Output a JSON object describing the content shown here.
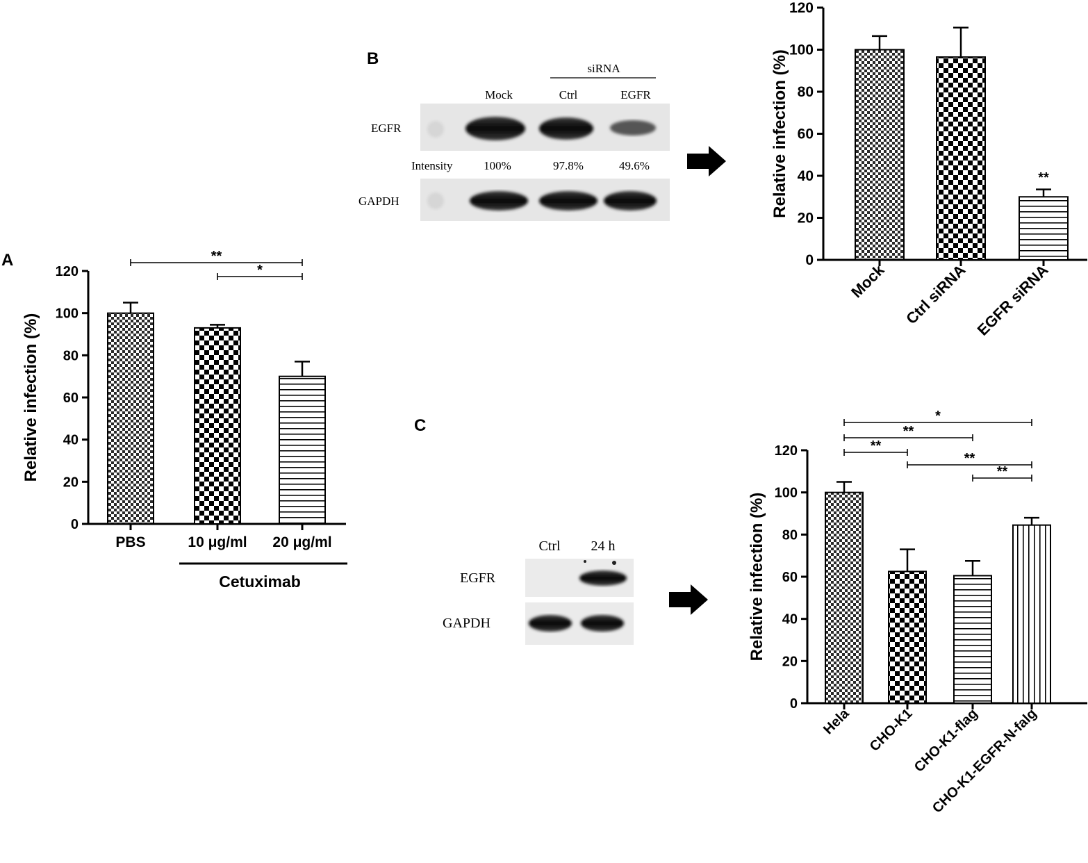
{
  "panels": {
    "A": {
      "letter": "A"
    },
    "B": {
      "letter": "B"
    },
    "C": {
      "letter": "C"
    }
  },
  "blot_B": {
    "group_label": "siRNA",
    "lanes": [
      "Mock",
      "Ctrl",
      "EGFR"
    ],
    "row1": "EGFR",
    "row2": "GAPDH",
    "intensity_label": "Intensity",
    "intensities": [
      "100%",
      "97.8%",
      "49.6%"
    ]
  },
  "blot_C": {
    "lanes": [
      "Ctrl",
      "24 h"
    ],
    "row1": "EGFR",
    "row2": "GAPDH"
  },
  "chart_data": [
    {
      "id": "A",
      "type": "bar",
      "categories": [
        "PBS",
        "10 μg/ml",
        "20  μg/ml"
      ],
      "values": [
        100,
        93,
        70
      ],
      "errors": [
        5,
        1.5,
        7
      ],
      "group_label": "Cetuximab",
      "ylabel": "Relative infection (%)",
      "ylim": [
        0,
        120
      ],
      "yticks": [
        0,
        20,
        40,
        60,
        80,
        100,
        120
      ],
      "patterns": [
        "fine-check",
        "checker",
        "hlines"
      ],
      "significance": [
        {
          "from": 0,
          "to": 2,
          "label": "**"
        },
        {
          "from": 1,
          "to": 2,
          "label": "*"
        }
      ]
    },
    {
      "id": "B",
      "type": "bar",
      "categories": [
        "Mock",
        "Ctrl siRNA",
        "EGFR siRNA"
      ],
      "values": [
        100,
        96.5,
        30
      ],
      "errors": [
        6.5,
        14,
        3.5
      ],
      "ylabel": "Relative infection (%)",
      "ylim": [
        0,
        120
      ],
      "yticks": [
        0,
        20,
        40,
        60,
        80,
        100,
        120
      ],
      "patterns": [
        "fine-check",
        "checker",
        "hlines"
      ],
      "bar_annotations": [
        {
          "bar": 2,
          "label": "**"
        }
      ]
    },
    {
      "id": "C",
      "type": "bar",
      "categories": [
        "Hela",
        "CHO-K1",
        "CHO-K1-flag",
        "CHO-K1-EGFR-N-falg"
      ],
      "values": [
        100,
        62.5,
        60.5,
        84.5
      ],
      "errors": [
        5,
        10.5,
        7,
        3.5
      ],
      "ylabel": "Relative infection (%)",
      "ylim": [
        0,
        120
      ],
      "yticks": [
        0,
        20,
        40,
        60,
        80,
        100,
        120
      ],
      "patterns": [
        "fine-check",
        "checker",
        "hlines",
        "vlines"
      ],
      "significance": [
        {
          "from": 0,
          "to": 3,
          "label": "*"
        },
        {
          "from": 0,
          "to": 2,
          "label": "**"
        },
        {
          "from": 0,
          "to": 1,
          "label": "**"
        },
        {
          "from": 1,
          "to": 3,
          "label": "**"
        },
        {
          "from": 2,
          "to": 3,
          "label": "**"
        }
      ]
    }
  ]
}
